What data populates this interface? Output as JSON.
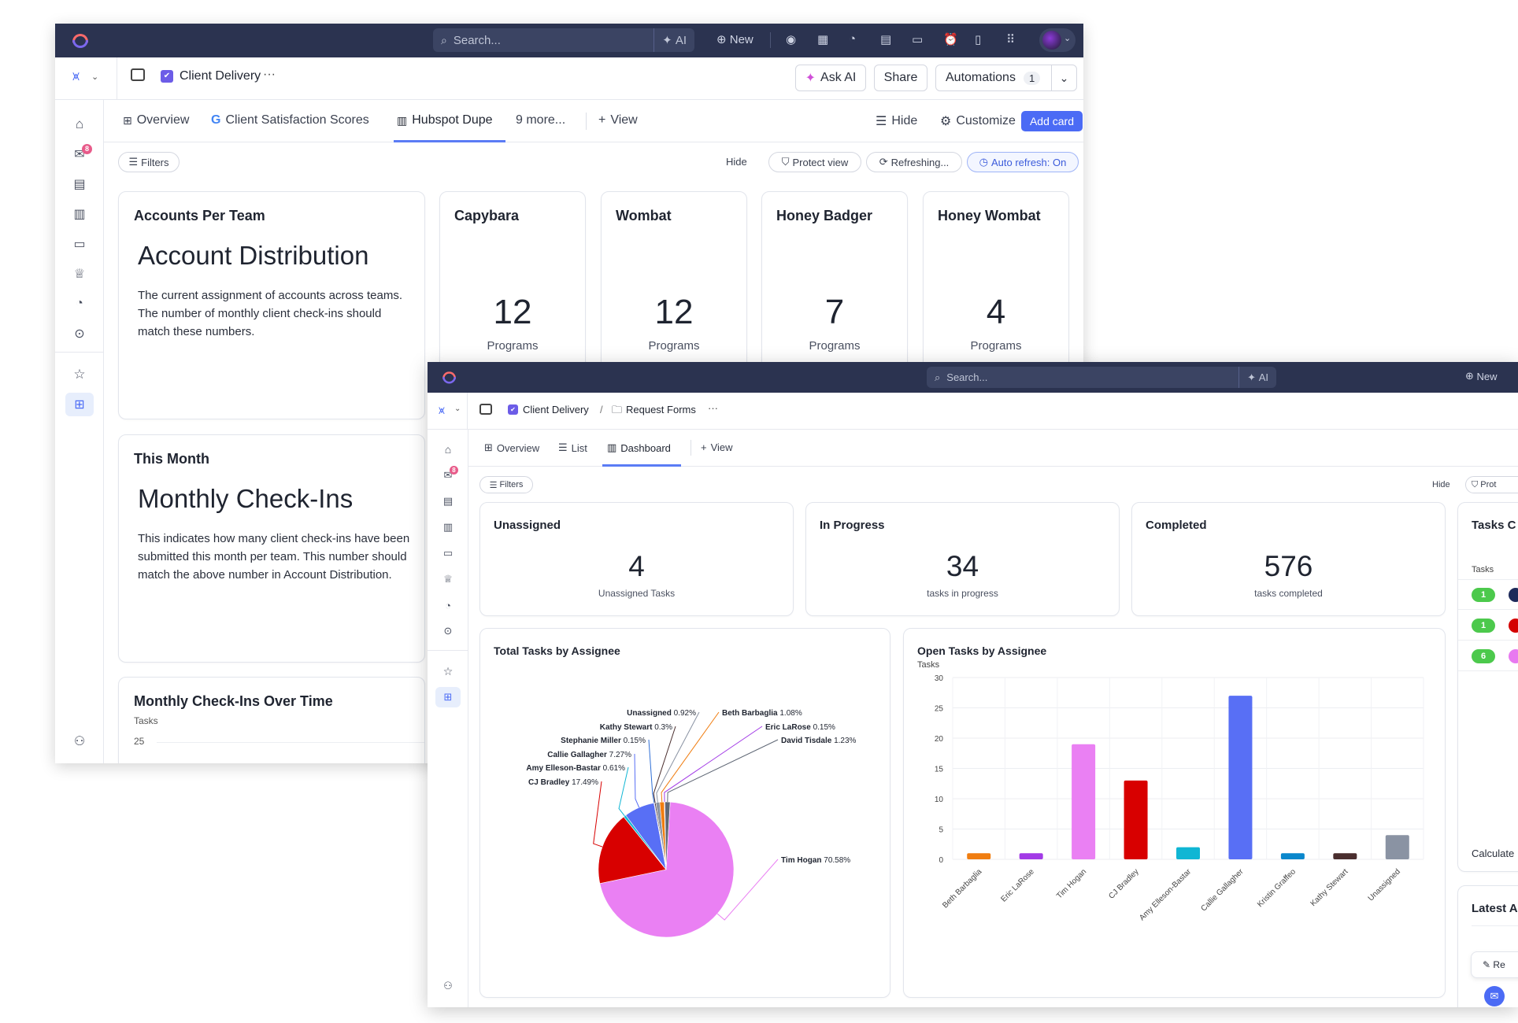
{
  "window1": {
    "topbar": {
      "search_placeholder": "Search...",
      "ai_label": "AI",
      "new_label": "New"
    },
    "breadcrumb": {
      "space": "Client Delivery",
      "more": "···"
    },
    "buttons": {
      "ask_ai": "Ask AI",
      "share": "Share",
      "automations": "Automations",
      "automations_count": "1"
    },
    "tabs": [
      {
        "label": "Overview"
      },
      {
        "label": "Client Satisfaction Scores"
      },
      {
        "label": "Hubspot Dupe"
      },
      {
        "label": "9 more..."
      },
      {
        "label": "View"
      }
    ],
    "tab_actions": {
      "hide": "Hide",
      "customize": "Customize",
      "add_card": "Add card"
    },
    "filterbar": {
      "filters": "Filters",
      "hide": "Hide",
      "protect": "Protect view",
      "refreshing": "Refreshing...",
      "auto_refresh": "Auto refresh: On"
    },
    "inbox_badge": "8",
    "cards": {
      "accounts": {
        "title": "Accounts Per Team",
        "heading": "Account Distribution",
        "text": "The current assignment of accounts across teams. The number of monthly client check-ins should match these numbers."
      },
      "teams": [
        {
          "name": "Capybara",
          "value": "12",
          "unit": "Programs"
        },
        {
          "name": "Wombat",
          "value": "12",
          "unit": "Programs"
        },
        {
          "name": "Honey Badger",
          "value": "7",
          "unit": "Programs"
        },
        {
          "name": "Honey Wombat",
          "value": "4",
          "unit": "Programs"
        }
      ],
      "this_month": {
        "title": "This Month",
        "heading": "Monthly Check-Ins",
        "text": "This indicates how many client check-ins have been submitted this month per team. This number should match the above number in Account Distribution."
      },
      "over_time": {
        "title": "Monthly Check-Ins Over Time",
        "ylabel": "Tasks",
        "first_tick": "25"
      }
    }
  },
  "window2": {
    "topbar": {
      "search_placeholder": "Search...",
      "ai_label": "AI",
      "new_label": "New"
    },
    "breadcrumb": {
      "space": "Client Delivery",
      "sep": "/",
      "folder": "Request Forms",
      "more": "···"
    },
    "tabs": [
      {
        "label": "Overview"
      },
      {
        "label": "List"
      },
      {
        "label": "Dashboard"
      },
      {
        "label": "View"
      }
    ],
    "filterbar": {
      "filters": "Filters",
      "hide": "Hide",
      "protect": "Prot"
    },
    "inbox_badge": "8",
    "stats": [
      {
        "title": "Unassigned",
        "value": "4",
        "caption": "Unassigned Tasks"
      },
      {
        "title": "In Progress",
        "value": "34",
        "caption": "tasks in progress"
      },
      {
        "title": "Completed",
        "value": "576",
        "caption": "tasks completed"
      }
    ],
    "right_card": {
      "title": "Tasks C",
      "col_label": "Tasks",
      "chips": [
        "1",
        "1",
        "6"
      ],
      "chip_color": "#4cc94c",
      "dot_colors": [
        "#1e2a5a",
        "#d40000",
        "#e879f0"
      ],
      "footer": "Calculate"
    },
    "latest_card": {
      "title": "Latest A",
      "item": "Re"
    }
  },
  "chart_data": [
    {
      "type": "pie",
      "title": "Total Tasks by Assignee",
      "slices": [
        {
          "label": "Tim Hogan",
          "pct_label": "70.58%",
          "value": 70.58,
          "color": "#ea80f3"
        },
        {
          "label": "CJ Bradley",
          "pct_label": "17.49%",
          "value": 17.49,
          "color": "#d80000"
        },
        {
          "label": "Amy Elleson-Bastar",
          "pct_label": "0.61%",
          "value": 0.61,
          "color": "#10b6d4"
        },
        {
          "label": "Callie Gallagher",
          "pct_label": "7.27%",
          "value": 7.27,
          "color": "#586ff5"
        },
        {
          "label": "Stephanie Miller",
          "pct_label": "0.15%",
          "value": 0.15,
          "color": "#2f6fd6"
        },
        {
          "label": "Kathy Stewart",
          "pct_label": "0.3%",
          "value": 0.3,
          "color": "#4a2e2e"
        },
        {
          "label": "Unassigned",
          "pct_label": "0.92%",
          "value": 0.92,
          "color": "#8a93a3"
        },
        {
          "label": "Beth Barbaglia",
          "pct_label": "1.08%",
          "value": 1.08,
          "color": "#f07d10"
        },
        {
          "label": "Eric LaRose",
          "pct_label": "0.15%",
          "value": 0.15,
          "color": "#a23ae6"
        },
        {
          "label": "David Tisdale",
          "pct_label": "1.23%",
          "value": 1.23,
          "color": "#5f6775"
        }
      ]
    },
    {
      "type": "bar",
      "title": "Open Tasks by Assignee",
      "ylabel": "Tasks",
      "ylim": [
        0,
        30
      ],
      "yticks": [
        0,
        5,
        10,
        15,
        20,
        25,
        30
      ],
      "categories": [
        "Beth Barbaglia",
        "Eric LaRose",
        "Tim Hogan",
        "CJ Bradley",
        "Amy Elleson-Bastar",
        "Callie Gallagher",
        "Kristin Graffeo",
        "Kathy Stewart",
        "Unassigned"
      ],
      "values": [
        1,
        1,
        19,
        13,
        2,
        27,
        1,
        1,
        4
      ],
      "colors": [
        "#f07d10",
        "#a23ae6",
        "#ea80f3",
        "#d80000",
        "#10b6d4",
        "#586ff5",
        "#0a87cc",
        "#4a2e2e",
        "#8a93a3"
      ],
      "grid": true
    }
  ]
}
